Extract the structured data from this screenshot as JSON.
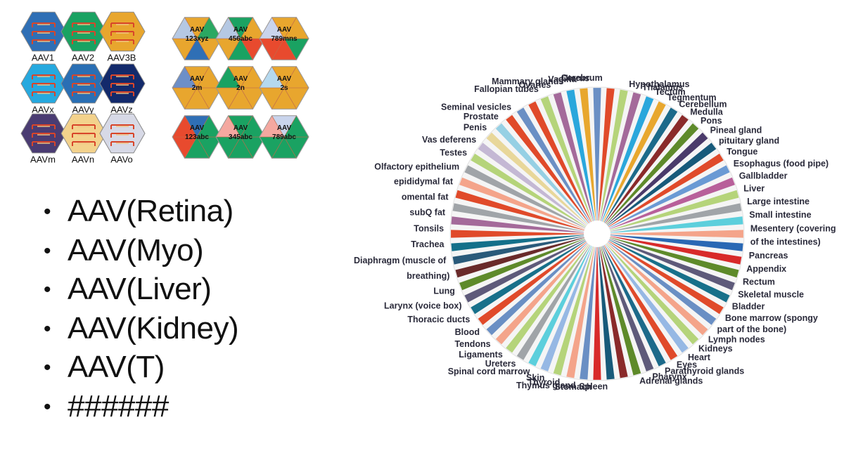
{
  "left_hexagons": [
    {
      "label": "AAV1",
      "color": "#2f6fb5"
    },
    {
      "label": "AAV2",
      "color": "#1aa262"
    },
    {
      "label": "AAV3B",
      "color": "#e8a62e"
    },
    {
      "label": "AAVx",
      "color": "#26a9df"
    },
    {
      "label": "AAVy",
      "color": "#2a6fb4"
    },
    {
      "label": "AAVz",
      "color": "#132a6b"
    },
    {
      "label": "AAVm",
      "color": "#4a3c72"
    },
    {
      "label": "AAVn",
      "color": "#f3d28c"
    },
    {
      "label": "AAVo",
      "color": "#d7d9e6"
    }
  ],
  "right_hexagons": [
    {
      "line1": "AAV",
      "line2": "123xyz",
      "colors": [
        "#e8a62e",
        "#2f6fb5",
        "#e8a62e",
        "#b5c8e3",
        "#e8a62e",
        "#2aa862"
      ]
    },
    {
      "line1": "AAV",
      "line2": "456abc",
      "colors": [
        "#e84a2e",
        "#1aa262",
        "#e8a62e",
        "#b5c8e3",
        "#1aa262",
        "#e8a62e"
      ]
    },
    {
      "line1": "AAV",
      "line2": "789mns",
      "colors": [
        "#1aa262",
        "#e84a2e",
        "#e84a2e",
        "#c9d4ec",
        "#e8a62e",
        "#e8a62e"
      ]
    },
    {
      "line1": "AAV",
      "line2": "2m",
      "colors": [
        "#e8a62e",
        "#e8a62e",
        "#e8a62e",
        "#6d8fc7",
        "#e8a62e",
        "#e8a62e"
      ]
    },
    {
      "line1": "AAV",
      "line2": "2n",
      "colors": [
        "#e8a62e",
        "#e8a62e",
        "#e8a62e",
        "#1aa262",
        "#e8a62e",
        "#e8a62e"
      ]
    },
    {
      "line1": "AAV",
      "line2": "2s",
      "colors": [
        "#e8a62e",
        "#e8a62e",
        "#e8a62e",
        "#b5d9ef",
        "#e8a62e",
        "#e8a62e"
      ]
    },
    {
      "line1": "AAV",
      "line2": "123abc",
      "colors": [
        "#1aa262",
        "#1aa262",
        "#e84a2e",
        "#e84a2e",
        "#2f6fb5",
        "#1aa262"
      ]
    },
    {
      "line1": "AAV",
      "line2": "345abc",
      "colors": [
        "#1aa262",
        "#1aa262",
        "#1aa262",
        "#f4a8a0",
        "#1aa262",
        "#1aa262"
      ]
    },
    {
      "line1": "AAV",
      "line2": "789abc",
      "colors": [
        "#1aa262",
        "#1aa262",
        "#1aa262",
        "#f4a8a0",
        "#c9d4ec",
        "#1aa262"
      ]
    }
  ],
  "bullets": [
    "AAV(Retina)",
    "AAV(Myo)",
    "AAV(Liver)",
    "AAV(Kidney)",
    "AAV(T)",
    "######"
  ],
  "bullet_glyph": "•",
  "wheel_palette": [
    "#6a8fc4",
    "#e04a2a",
    "#b5d47a",
    "#a46a9a",
    "#2aa7dc",
    "#e8a72e",
    "#1c6a8a",
    "#8a2a2a",
    "#5e8a2a",
    "#4a3a6a",
    "#175a7a",
    "#e04a2a",
    "#6a9ad4",
    "#b8609a",
    "#b5d47a",
    "#a0a4a8",
    "#5ccfdc",
    "#f4a48a",
    "#2a68b4",
    "#d82a2a",
    "#5e8a2a",
    "#5e5a7a",
    "#17708a",
    "#e04a2a",
    "#6a8fc4",
    "#f4a48a",
    "#b5d47a",
    "#96b8e4",
    "#e04a2a",
    "#1c6a8a",
    "#5e5a7a",
    "#5e8a2a",
    "#8a2a2a",
    "#175a7a",
    "#d82a2a",
    "#6a8fc4",
    "#f4a48a",
    "#b5d47a",
    "#96b8e4",
    "#5ccfdc",
    "#a0a4a8",
    "#b5d47a",
    "#f4a48a",
    "#6a8fc4",
    "#e04a2a",
    "#17708a",
    "#5e5a7a",
    "#5e8a2a",
    "#6a2a2a",
    "#2a5a7a",
    "#14708a",
    "#e04a2a",
    "#a46a9a",
    "#a0a4a8",
    "#e04a2a",
    "#f4a48a",
    "#a0a4a8",
    "#b5d47a",
    "#c4b8d4",
    "#e8d79a",
    "#96d0e4",
    "#e04a2a",
    "#6a8fc4",
    "#e04a2a",
    "#b5d47a",
    "#a46a9a",
    "#2aa7dc",
    "#e8a72e"
  ],
  "organs_right": [
    "Hypothalamus",
    "Thalamus",
    "Tectum",
    "Tegmentum",
    "Cerebellum",
    "Medulla",
    "Pons",
    "Pineal gland",
    "pituitary gland",
    "Tongue",
    "Esophagus (food pipe)",
    "Gallbladder",
    "Liver",
    "Large intestine",
    "Small intestine",
    "Mesentery (covering",
    "of the intestines)",
    "Pancreas",
    "Appendix",
    "Rectum",
    "Skeletal muscle",
    "Bladder",
    "Bone marrow (spongy",
    "part of the bone)",
    "Lymph nodes",
    "Kidneys",
    "Heart",
    "Eyes",
    "Parathyroid glands",
    "Pharynx",
    "Adrenal glands"
  ],
  "organs_top": [
    "Cerebrum",
    "Uterus",
    "Vagina",
    "Mammary glands",
    "Ovaries",
    "Fallopian tubes"
  ],
  "organs_left": [
    "Seminal vesicles",
    "Prostate",
    "Penis",
    "Vas deferens",
    "Testes",
    "Olfactory epithelium",
    "epididymal fat",
    "omental fat",
    "subQ fat",
    "Tonsils",
    "Trachea",
    "Diaphragm (muscle of",
    "breathing)",
    "Lung",
    "Larynx (voice box)",
    "Thoracic ducts",
    "Blood",
    "Tendons",
    "Ligaments",
    "Ureters",
    "Spinal cord marrow",
    "Skin",
    "Thyroid",
    "Thymus gland",
    "Stomach",
    "Spleen"
  ]
}
